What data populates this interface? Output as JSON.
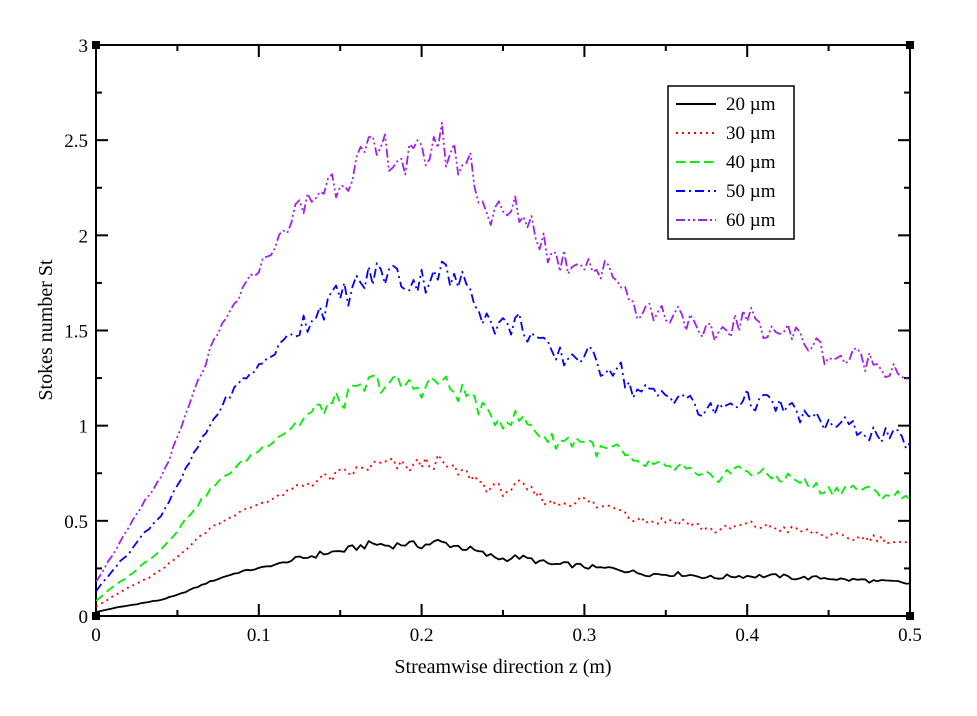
{
  "chart_data": {
    "type": "line",
    "xlabel": "Streamwise direction z (m)",
    "ylabel": "Stokes number  St",
    "xlim": [
      0,
      0.5
    ],
    "ylim": [
      0,
      3
    ],
    "x_ticks": [
      "0",
      "0.1",
      "0.2",
      "0.3",
      "0.4",
      "0.5"
    ],
    "y_ticks": [
      "0",
      "0.5",
      "1",
      "1.5",
      "2",
      "2.5",
      "3"
    ],
    "legend_position": "top-right",
    "x": [
      0,
      0.01,
      0.02,
      0.03,
      0.04,
      0.05,
      0.06,
      0.07,
      0.08,
      0.09,
      0.1,
      0.11,
      0.12,
      0.13,
      0.14,
      0.15,
      0.16,
      0.17,
      0.18,
      0.19,
      0.2,
      0.21,
      0.22,
      0.23,
      0.24,
      0.25,
      0.26,
      0.27,
      0.28,
      0.29,
      0.3,
      0.31,
      0.32,
      0.33,
      0.34,
      0.35,
      0.36,
      0.37,
      0.38,
      0.39,
      0.4,
      0.41,
      0.42,
      0.43,
      0.44,
      0.45,
      0.46,
      0.47,
      0.48,
      0.49,
      0.5
    ],
    "series": [
      {
        "name": "20 µm",
        "color": "#000000",
        "dash": "solid",
        "values": [
          0.02,
          0.04,
          0.055,
          0.07,
          0.085,
          0.11,
          0.145,
          0.18,
          0.21,
          0.235,
          0.25,
          0.27,
          0.29,
          0.31,
          0.33,
          0.34,
          0.36,
          0.38,
          0.37,
          0.38,
          0.37,
          0.39,
          0.37,
          0.35,
          0.32,
          0.3,
          0.31,
          0.29,
          0.27,
          0.27,
          0.26,
          0.25,
          0.25,
          0.23,
          0.22,
          0.22,
          0.22,
          0.21,
          0.2,
          0.21,
          0.21,
          0.21,
          0.21,
          0.2,
          0.2,
          0.2,
          0.19,
          0.19,
          0.18,
          0.18,
          0.17
        ]
      },
      {
        "name": "30 µm",
        "color": "#ff0000",
        "dash": "dotted",
        "values": [
          0.05,
          0.1,
          0.15,
          0.19,
          0.24,
          0.31,
          0.39,
          0.46,
          0.51,
          0.55,
          0.59,
          0.62,
          0.66,
          0.7,
          0.72,
          0.74,
          0.76,
          0.79,
          0.8,
          0.78,
          0.8,
          0.81,
          0.76,
          0.74,
          0.68,
          0.66,
          0.68,
          0.64,
          0.59,
          0.6,
          0.61,
          0.57,
          0.58,
          0.52,
          0.5,
          0.5,
          0.5,
          0.47,
          0.45,
          0.46,
          0.48,
          0.47,
          0.46,
          0.45,
          0.44,
          0.42,
          0.41,
          0.41,
          0.41,
          0.39,
          0.37
        ]
      },
      {
        "name": "40 µm",
        "color": "#00ee00",
        "dash": "dashed",
        "values": [
          0.08,
          0.15,
          0.21,
          0.28,
          0.35,
          0.45,
          0.56,
          0.66,
          0.74,
          0.81,
          0.87,
          0.93,
          0.99,
          1.05,
          1.1,
          1.13,
          1.17,
          1.23,
          1.22,
          1.21,
          1.2,
          1.24,
          1.18,
          1.16,
          1.05,
          1.03,
          1.04,
          0.98,
          0.92,
          0.92,
          0.93,
          0.86,
          0.88,
          0.79,
          0.8,
          0.77,
          0.78,
          0.72,
          0.73,
          0.76,
          0.77,
          0.74,
          0.73,
          0.72,
          0.68,
          0.66,
          0.67,
          0.67,
          0.64,
          0.64,
          0.61
        ]
      },
      {
        "name": "50 µm",
        "color": "#0000ff",
        "dash": "dashdot",
        "values": [
          0.13,
          0.24,
          0.33,
          0.44,
          0.53,
          0.68,
          0.85,
          1.0,
          1.14,
          1.24,
          1.31,
          1.39,
          1.49,
          1.56,
          1.63,
          1.68,
          1.73,
          1.79,
          1.81,
          1.76,
          1.76,
          1.83,
          1.75,
          1.74,
          1.56,
          1.52,
          1.54,
          1.46,
          1.36,
          1.36,
          1.38,
          1.31,
          1.32,
          1.18,
          1.17,
          1.16,
          1.17,
          1.07,
          1.08,
          1.12,
          1.14,
          1.12,
          1.1,
          1.07,
          1.03,
          1.01,
          1.0,
          0.98,
          0.95,
          0.94,
          0.91
        ]
      },
      {
        "name": "60 µm",
        "color": "#a020f0",
        "dash": "dashdotdot",
        "values": [
          0.18,
          0.32,
          0.46,
          0.6,
          0.73,
          0.93,
          1.17,
          1.39,
          1.56,
          1.71,
          1.83,
          1.95,
          2.07,
          2.17,
          2.26,
          2.31,
          2.37,
          2.42,
          2.45,
          2.38,
          2.4,
          2.52,
          2.4,
          2.38,
          2.12,
          2.1,
          2.13,
          2.04,
          1.89,
          1.86,
          1.89,
          1.8,
          1.8,
          1.64,
          1.6,
          1.59,
          1.61,
          1.45,
          1.48,
          1.53,
          1.56,
          1.53,
          1.5,
          1.47,
          1.43,
          1.37,
          1.35,
          1.36,
          1.32,
          1.31,
          1.26
        ]
      }
    ]
  }
}
